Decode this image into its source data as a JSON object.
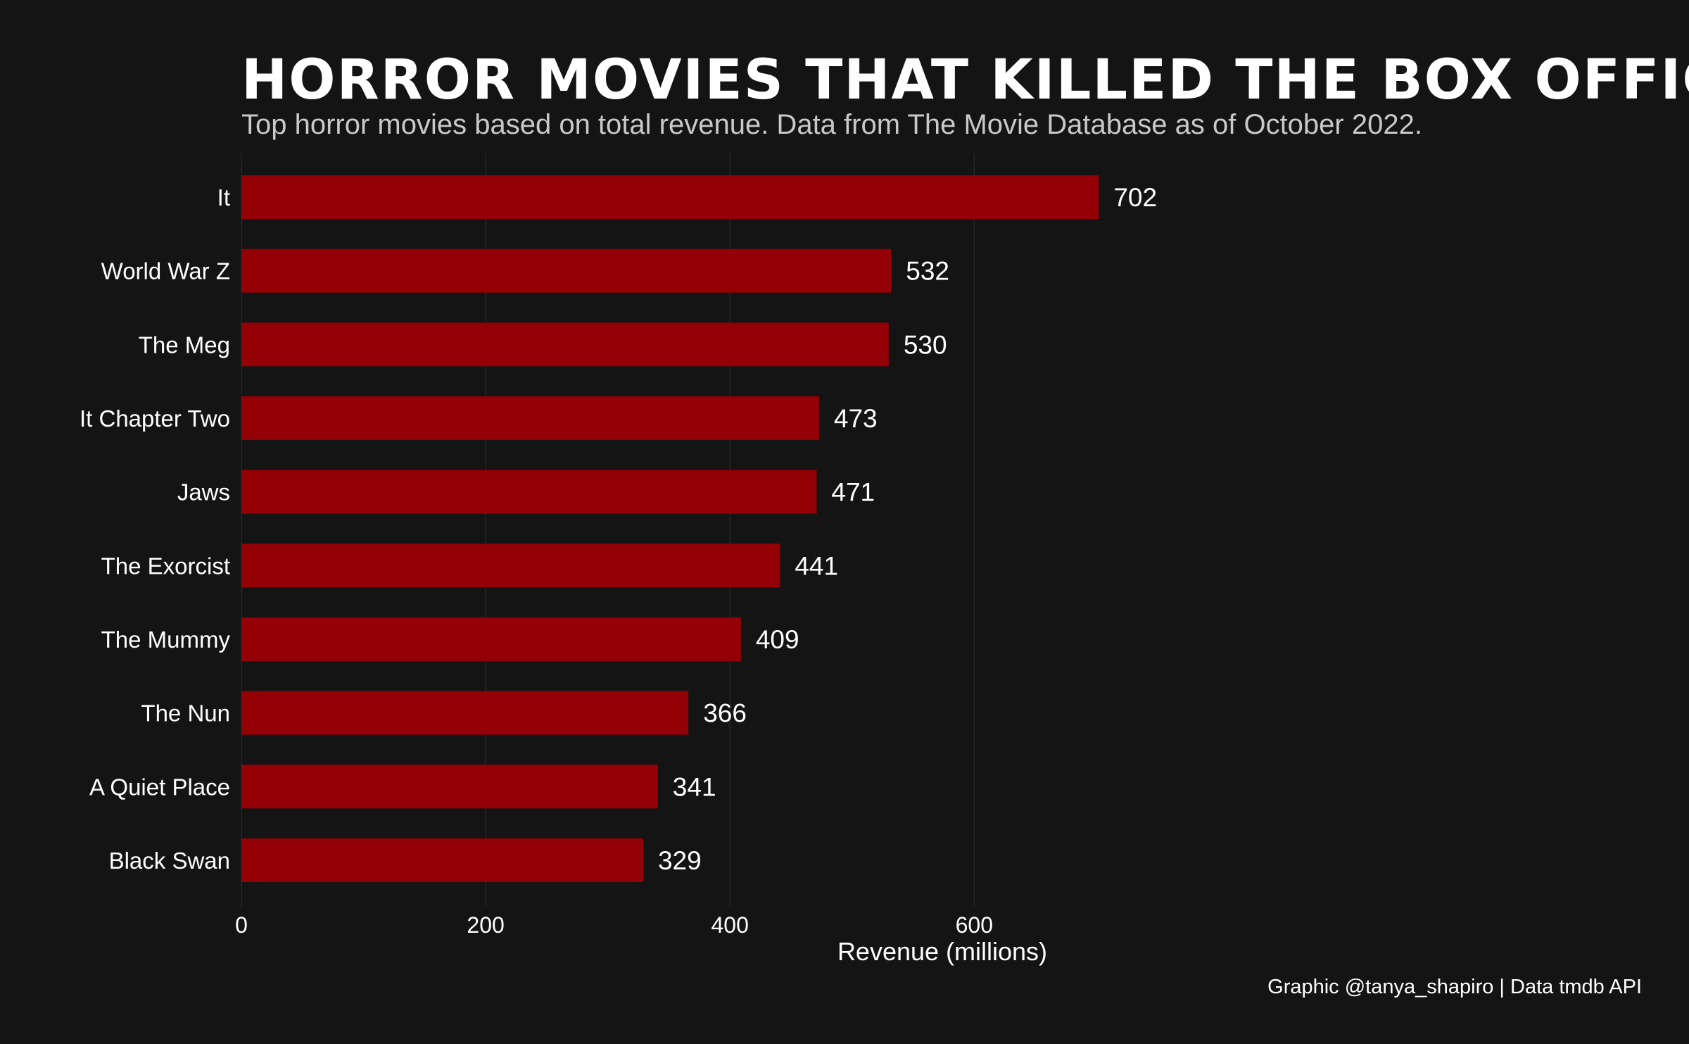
{
  "colors": {
    "background": "#141414",
    "bar": "#930006",
    "gridline": "#262626",
    "text": "#ffffff",
    "subtitle": "#c9c9c9"
  },
  "chart_data": {
    "type": "bar",
    "orientation": "horizontal",
    "title": "HORROR MOVIES THAT KILLED THE BOX OFFICE",
    "subtitle": "Top horror movies based on total revenue. Data from The Movie Database as of October 2022.",
    "xlabel": "Revenue (millions)",
    "ylabel": "",
    "caption": "Graphic @tanya_shapiro | Data tmdb API",
    "categories": [
      "It",
      "World War Z",
      "The Meg",
      "It Chapter Two",
      "Jaws",
      "The Exorcist",
      "The Mummy",
      "The Nun",
      "A Quiet Place",
      "Black Swan"
    ],
    "values": [
      702,
      532,
      530,
      473,
      471,
      441,
      409,
      366,
      341,
      329
    ],
    "xlim": [
      0,
      750
    ],
    "xticks": [
      0,
      200,
      400,
      600
    ],
    "xtick_labels": [
      "0",
      "200",
      "400",
      "600"
    ],
    "grid": true,
    "legend": "none"
  }
}
